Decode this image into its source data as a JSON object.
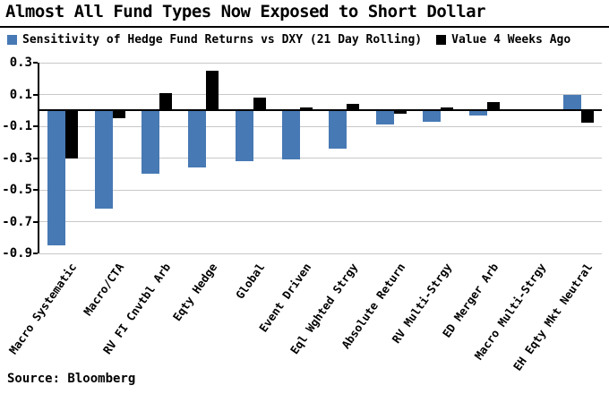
{
  "title": "Almost All Fund Types Now Exposed to Short Dollar",
  "source": "Source: Bloomberg",
  "legend": [
    {
      "label": "Sensitivity of Hedge Fund Returns vs DXY (21 Day Rolling)",
      "color": "#4779b4"
    },
    {
      "label": "Value 4 Weeks Ago",
      "color": "#000000"
    }
  ],
  "chart_data": {
    "type": "bar",
    "title": "Almost All Fund Types Now Exposed to Short Dollar",
    "categories": [
      "Macro Systematic",
      "Macro/CTA",
      "RV FI Cnvtbl Arb",
      "Eqty Hedge",
      "Global",
      "Event Driven",
      "Eql Wghted Strgy",
      "Absolute Return",
      "RV Multi-Strgy",
      "ED Merger Arb",
      "Macro Multi-Strgy",
      "EH Eqty Mkt Neutral"
    ],
    "series": [
      {
        "name": "Sensitivity of Hedge Fund Returns vs DXY (21 Day Rolling)",
        "color": "#4779b4",
        "values": [
          -0.85,
          -0.62,
          -0.4,
          -0.36,
          -0.32,
          -0.31,
          -0.24,
          -0.09,
          -0.07,
          -0.03,
          0,
          0.1
        ]
      },
      {
        "name": "Value 4 Weeks Ago",
        "color": "#000000",
        "values": [
          -0.3,
          -0.05,
          0.11,
          0.25,
          0.08,
          0.02,
          0.04,
          -0.02,
          0.02,
          0.05,
          0,
          -0.08
        ]
      }
    ],
    "ylim": [
      -0.9,
      0.3
    ],
    "ytick_labels": [
      "0.3",
      "0.1",
      "-0.1",
      "-0.3",
      "-0.5",
      "-0.7",
      "-0.9"
    ],
    "xlabel": "",
    "ylabel": "",
    "grid": "on",
    "grid_color": "#c8c8c8",
    "legend_position": "top",
    "source": "Source: Bloomberg"
  }
}
